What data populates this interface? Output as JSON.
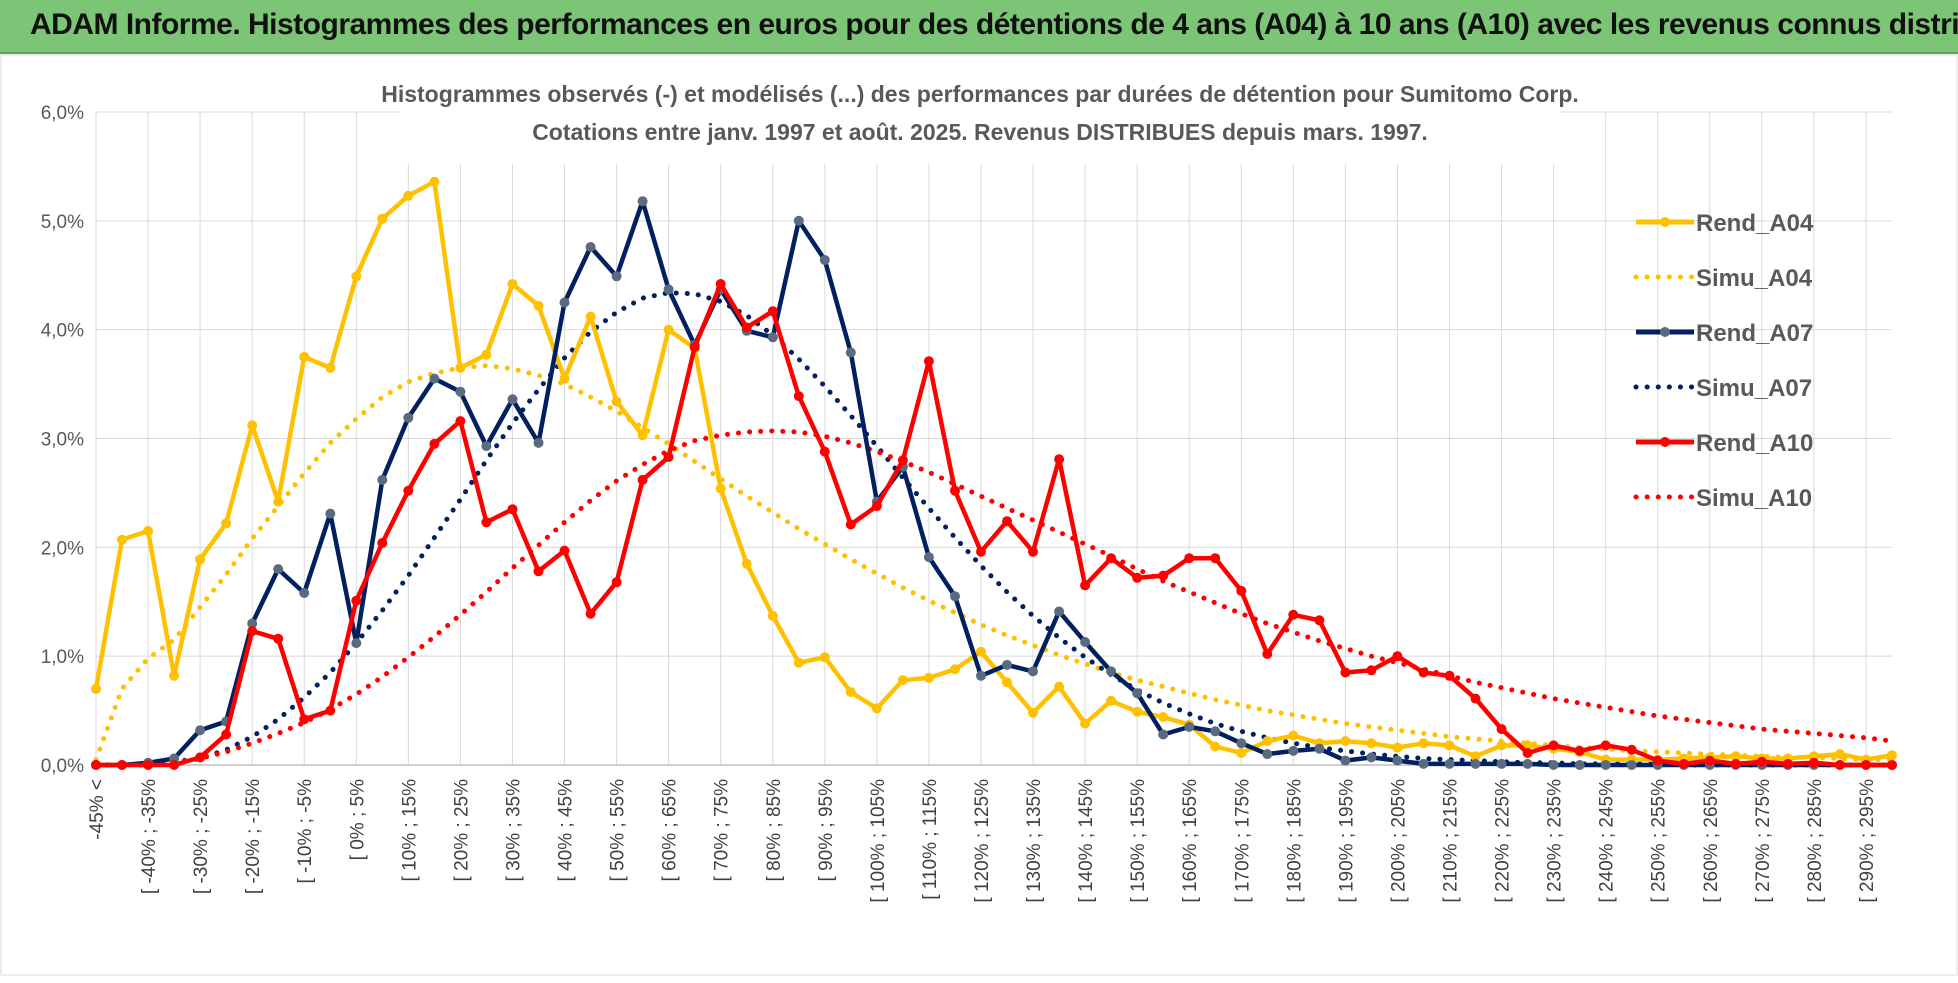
{
  "banner": {
    "title": "ADAM Informe. Histogrammes des performances en euros pour des détentions de 4 ans (A04) à 10 ans (A10) avec les revenus connus distribués"
  },
  "chart_data": {
    "type": "line",
    "title": "Histogrammes observés (-) et modélisés (...) des performances par durées de détention pour Sumitomo Corp.",
    "subtitle": "Cotations entre janv. 1997 et août. 2025. Revenus DISTRIBUES depuis mars. 1997.",
    "ylim": [
      0,
      6
    ],
    "y_ticks": [
      "0,0%",
      "1,0%",
      "2,0%",
      "3,0%",
      "4,0%",
      "5,0%",
      "6,0%"
    ],
    "grid": true,
    "legend_position": "right",
    "x_tick_labels": [
      "-45% <",
      "[ -40% ; -35%",
      "[ -30% ; -25%",
      "[ -20% ; -15%",
      "[ -10% ; -5%",
      "[ 0% ; 5%",
      "[ 10% ; 15%",
      "[ 20% ; 25%",
      "[ 30% ; 35%",
      "[ 40% ; 45%",
      "[ 50% ; 55%",
      "[ 60% ; 65%",
      "[ 70% ; 75%",
      "[ 80% ; 85%",
      "[ 90% ; 95%",
      "[ 100% ; 105%",
      "[ 110% ; 115%",
      "[ 120% ; 125%",
      "[ 130% ; 135%",
      "[ 140% ; 145%",
      "[ 150% ; 155%",
      "[ 160% ; 165%",
      "[ 170% ; 175%",
      "[ 180% ; 185%",
      "[ 190% ; 195%",
      "[ 200% ; 205%",
      "[ 210% ; 215%",
      "[ 220% ; 225%",
      "[ 230% ; 235%",
      "[ 240% ; 245%",
      "[ 250% ; 255%",
      "[ 260% ; 265%",
      "[ 270% ; 275%",
      "[ 280% ; 285%",
      "[ 290% ; 295%"
    ],
    "series": [
      {
        "name": "Rend_A04",
        "style": "solid",
        "color": "#ffc000",
        "values": [
          0.7,
          2.07,
          2.15,
          0.82,
          1.89,
          2.22,
          3.12,
          2.42,
          3.75,
          3.65,
          4.49,
          5.02,
          5.23,
          5.36,
          3.65,
          3.77,
          4.42,
          4.22,
          3.55,
          4.12,
          3.34,
          3.03,
          4.0,
          3.83,
          2.54,
          1.85,
          1.37,
          0.94,
          0.99,
          0.67,
          0.52,
          0.78,
          0.8,
          0.88,
          1.04,
          0.76,
          0.48,
          0.72,
          0.38,
          0.59,
          0.49,
          0.44,
          0.37,
          0.17,
          0.11,
          0.22,
          0.27,
          0.2,
          0.22,
          0.2,
          0.16,
          0.2,
          0.18,
          0.08,
          0.18,
          0.18,
          0.15,
          0.12,
          0.05,
          0.05,
          0.05,
          0.06,
          0.07,
          0.08,
          0.06,
          0.06,
          0.08,
          0.1,
          0.05,
          0.09
        ]
      },
      {
        "name": "Simu_A04",
        "style": "dotted",
        "color": "#ffc000",
        "values": [
          0.05,
          0.7,
          0.98,
          1.15,
          1.45,
          1.75,
          2.08,
          2.38,
          2.68,
          2.96,
          3.18,
          3.38,
          3.52,
          3.6,
          3.65,
          3.67,
          3.64,
          3.58,
          3.5,
          3.38,
          3.25,
          3.1,
          2.95,
          2.79,
          2.63,
          2.47,
          2.32,
          2.17,
          2.03,
          1.89,
          1.76,
          1.63,
          1.51,
          1.4,
          1.29,
          1.19,
          1.1,
          1.01,
          0.93,
          0.85,
          0.78,
          0.72,
          0.66,
          0.6,
          0.55,
          0.5,
          0.46,
          0.42,
          0.38,
          0.35,
          0.32,
          0.29,
          0.26,
          0.24,
          0.22,
          0.2,
          0.18,
          0.16,
          0.15,
          0.13,
          0.12,
          0.11,
          0.1,
          0.09,
          0.08,
          0.07,
          0.07,
          0.06,
          0.05,
          0.05
        ]
      },
      {
        "name": "Rend_A07",
        "style": "solid",
        "color": "#002060",
        "values": [
          0,
          0,
          0.02,
          0.06,
          0.32,
          0.4,
          1.3,
          1.8,
          1.58,
          2.31,
          1.12,
          2.62,
          3.19,
          3.55,
          3.43,
          2.93,
          3.36,
          2.96,
          4.25,
          4.76,
          4.49,
          5.18,
          4.37,
          3.86,
          4.37,
          3.99,
          3.93,
          5.0,
          4.64,
          3.79,
          2.42,
          2.74,
          1.91,
          1.55,
          0.82,
          0.92,
          0.86,
          1.41,
          1.13,
          0.86,
          0.66,
          0.28,
          0.35,
          0.31,
          0.2,
          0.1,
          0.13,
          0.15,
          0.04,
          0.07,
          0.04,
          0.01,
          0.01,
          0.01,
          0.01,
          0.01,
          0,
          0,
          0,
          0,
          0,
          0,
          0,
          0,
          0,
          0,
          0,
          0,
          0,
          0
        ]
      },
      {
        "name": "Simu_A07",
        "style": "dotted",
        "color": "#002060",
        "values": [
          0,
          0,
          0.01,
          0.03,
          0.06,
          0.14,
          0.26,
          0.42,
          0.62,
          0.85,
          1.12,
          1.42,
          1.74,
          2.09,
          2.44,
          2.8,
          3.14,
          3.45,
          3.74,
          3.98,
          4.16,
          4.29,
          4.34,
          4.33,
          4.26,
          4.13,
          3.95,
          3.73,
          3.48,
          3.21,
          2.93,
          2.64,
          2.36,
          2.09,
          1.83,
          1.59,
          1.37,
          1.17,
          0.99,
          0.83,
          0.69,
          0.57,
          0.47,
          0.38,
          0.31,
          0.25,
          0.2,
          0.16,
          0.13,
          0.1,
          0.08,
          0.06,
          0.05,
          0.04,
          0.03,
          0.02,
          0.02,
          0.01,
          0.01,
          0.01,
          0.01,
          0,
          0,
          0,
          0,
          0,
          0,
          0,
          0,
          0
        ]
      },
      {
        "name": "Rend_A10",
        "style": "solid",
        "color": "#ff0000",
        "values": [
          0,
          0,
          0,
          0,
          0.07,
          0.28,
          1.23,
          1.16,
          0.42,
          0.5,
          1.51,
          2.04,
          2.52,
          2.95,
          3.16,
          2.23,
          2.35,
          1.78,
          1.97,
          1.39,
          1.68,
          2.62,
          2.83,
          3.84,
          4.42,
          4.02,
          4.17,
          3.39,
          2.88,
          2.21,
          2.38,
          2.8,
          3.71,
          2.52,
          1.96,
          2.24,
          1.96,
          2.81,
          1.65,
          1.9,
          1.72,
          1.74,
          1.9,
          1.9,
          1.6,
          1.02,
          1.38,
          1.33,
          0.85,
          0.87,
          1.0,
          0.85,
          0.82,
          0.61,
          0.33,
          0.11,
          0.18,
          0.13,
          0.18,
          0.14,
          0.04,
          0.01,
          0.04,
          0.01,
          0.03,
          0.01,
          0.02,
          0,
          0,
          0
        ]
      },
      {
        "name": "Simu_A10",
        "style": "dotted",
        "color": "#ff0000",
        "values": [
          0,
          0,
          0,
          0.02,
          0.06,
          0.12,
          0.2,
          0.29,
          0.39,
          0.51,
          0.65,
          0.81,
          0.99,
          1.18,
          1.38,
          1.59,
          1.81,
          2.02,
          2.23,
          2.43,
          2.61,
          2.76,
          2.89,
          2.98,
          3.03,
          3.06,
          3.07,
          3.06,
          3.02,
          2.96,
          2.88,
          2.79,
          2.69,
          2.58,
          2.47,
          2.36,
          2.25,
          2.14,
          2.03,
          1.92,
          1.8,
          1.69,
          1.59,
          1.49,
          1.39,
          1.3,
          1.22,
          1.14,
          1.07,
          1.0,
          0.94,
          0.88,
          0.82,
          0.76,
          0.71,
          0.66,
          0.61,
          0.57,
          0.53,
          0.49,
          0.45,
          0.42,
          0.39,
          0.36,
          0.33,
          0.31,
          0.29,
          0.27,
          0.25,
          0.22
        ]
      }
    ]
  }
}
